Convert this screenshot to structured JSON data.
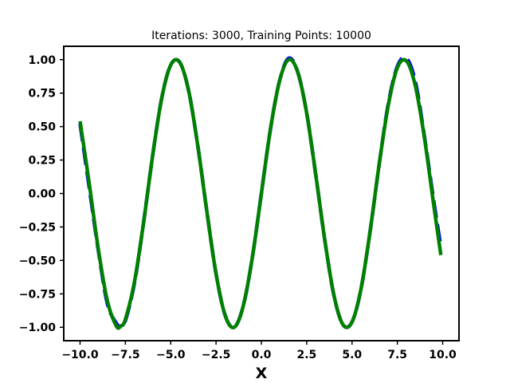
{
  "chart_data": {
    "type": "line",
    "title": "Iterations: 3000, Training Points: 10000",
    "xlabel": "X",
    "ylabel": "",
    "xlim": [
      -10.9,
      10.9
    ],
    "ylim": [
      -1.1,
      1.1
    ],
    "xticks": [
      -10.0,
      -7.5,
      -5.0,
      -2.5,
      0.0,
      2.5,
      5.0,
      7.5,
      10.0
    ],
    "xtick_labels": [
      "−10.0",
      "−7.5",
      "−5.0",
      "−2.5",
      "0.0",
      "2.5",
      "5.0",
      "7.5",
      "10.0"
    ],
    "yticks": [
      1.0,
      0.75,
      0.5,
      0.25,
      0.0,
      -0.25,
      -0.5,
      -0.75,
      -1.0
    ],
    "ytick_labels": [
      "1.00",
      "0.75",
      "0.50",
      "0.25",
      "0.00",
      "−0.25",
      "−0.50",
      "−0.75",
      "−1.00"
    ],
    "grid": false,
    "series": [
      {
        "style": "dashed",
        "color": "#0000ff",
        "x": [
          -10,
          -9.5,
          -9,
          -8.5,
          -8,
          -7.75,
          -7.5,
          -7,
          -6.5,
          -6,
          -5.5,
          -5,
          -4.5,
          -4,
          -3.5,
          -3,
          -2.5,
          -2,
          -1.5,
          -1,
          -0.5,
          0,
          0.5,
          1,
          1.5,
          2,
          2.5,
          3,
          3.5,
          4,
          4.5,
          5,
          5.5,
          6,
          6.5,
          7,
          7.5,
          8,
          8.5,
          9,
          9.5,
          9.9
        ],
        "y": [
          0.52,
          0.05,
          -0.42,
          -0.82,
          -0.97,
          -0.99,
          -0.95,
          -0.67,
          -0.22,
          0.28,
          0.71,
          0.96,
          0.98,
          0.76,
          0.35,
          -0.14,
          -0.6,
          -0.91,
          -1.0,
          -0.84,
          -0.48,
          0.0,
          0.48,
          0.84,
          1.01,
          0.91,
          0.6,
          0.14,
          -0.35,
          -0.76,
          -0.98,
          -0.96,
          -0.71,
          -0.28,
          0.22,
          0.67,
          0.95,
          1.01,
          0.83,
          0.42,
          -0.05,
          -0.4
        ]
      },
      {
        "style": "solid",
        "color": "#008000",
        "x": [
          -10,
          -9.5,
          -9,
          -8.5,
          -8,
          -7.75,
          -7.5,
          -7,
          -6.5,
          -6,
          -5.5,
          -5,
          -4.5,
          -4,
          -3.5,
          -3,
          -2.5,
          -2,
          -1.5,
          -1,
          -0.5,
          0,
          0.5,
          1,
          1.5,
          2,
          2.5,
          3,
          3.5,
          4,
          4.5,
          5,
          5.5,
          6,
          6.5,
          7,
          7.5,
          8,
          8.5,
          9,
          9.5,
          9.9
        ],
        "y": [
          0.54,
          0.08,
          -0.41,
          -0.8,
          -0.99,
          -0.99,
          -0.94,
          -0.66,
          -0.22,
          0.28,
          0.71,
          0.96,
          0.98,
          0.76,
          0.35,
          -0.14,
          -0.6,
          -0.91,
          -1.0,
          -0.84,
          -0.48,
          0.0,
          0.48,
          0.84,
          1.0,
          0.91,
          0.6,
          0.14,
          -0.35,
          -0.76,
          -0.98,
          -0.96,
          -0.71,
          -0.28,
          0.22,
          0.66,
          0.94,
          0.99,
          0.8,
          0.41,
          -0.08,
          -0.46
        ]
      }
    ]
  }
}
